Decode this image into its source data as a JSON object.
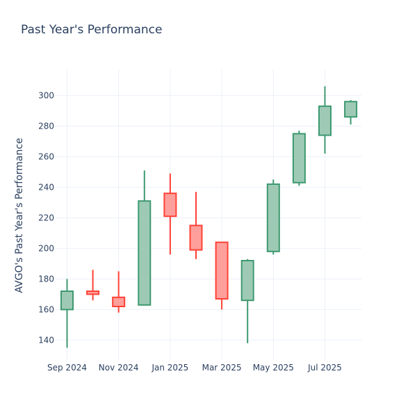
{
  "chart_data": {
    "type": "candlestick",
    "title": "Past Year's Performance",
    "xlabel": "",
    "ylabel": "AVGO's Past Year's Performance",
    "ylim": [
      127,
      317
    ],
    "y_ticks": [
      140,
      160,
      180,
      200,
      220,
      240,
      260,
      280,
      300
    ],
    "x_ticks": [
      "Sep 2024",
      "Nov 2024",
      "Jan 2025",
      "Mar 2025",
      "May 2025",
      "Jul 2025"
    ],
    "colors": {
      "increasing": "#3d9970",
      "decreasing": "#ff4136",
      "increasing_fill": "#9ecab5",
      "decreasing_fill": "#ff9f9b"
    },
    "series": [
      {
        "period": "Sep 2024",
        "open": 160,
        "high": 180,
        "low": 135,
        "close": 172
      },
      {
        "period": "Oct 2024",
        "open": 172,
        "high": 186,
        "low": 166,
        "close": 170
      },
      {
        "period": "Nov 2024",
        "open": 168,
        "high": 185,
        "low": 158,
        "close": 162
      },
      {
        "period": "Dec 2024",
        "open": 163,
        "high": 251,
        "low": 163,
        "close": 231
      },
      {
        "period": "Jan 2025",
        "open": 236,
        "high": 249,
        "low": 196,
        "close": 221
      },
      {
        "period": "Feb 2025",
        "open": 215,
        "high": 237,
        "low": 193,
        "close": 199
      },
      {
        "period": "Mar 2025",
        "open": 204,
        "high": 204,
        "low": 160,
        "close": 167
      },
      {
        "period": "Apr 2025",
        "open": 166,
        "high": 193,
        "low": 138,
        "close": 192
      },
      {
        "period": "May 2025",
        "open": 198,
        "high": 245,
        "low": 196,
        "close": 242
      },
      {
        "period": "Jun 2025",
        "open": 243,
        "high": 277,
        "low": 241,
        "close": 275
      },
      {
        "period": "Jul 2025",
        "open": 274,
        "high": 306,
        "low": 262,
        "close": 293
      },
      {
        "period": "Aug 2025",
        "open": 286,
        "high": 297,
        "low": 281,
        "close": 296
      }
    ]
  }
}
